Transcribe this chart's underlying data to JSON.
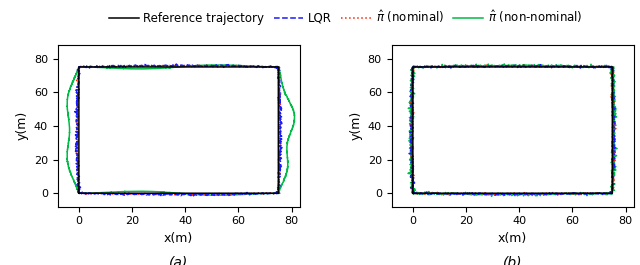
{
  "xlim": [
    -8,
    83
  ],
  "ylim": [
    -8,
    88
  ],
  "xticks": [
    0,
    20,
    40,
    60,
    80
  ],
  "yticks": [
    0,
    20,
    40,
    60,
    80
  ],
  "xlabel": "x(m)",
  "ylabel": "y(m)",
  "rect_corners": [
    [
      0,
      0
    ],
    [
      75,
      0
    ],
    [
      75,
      75
    ],
    [
      0,
      75
    ],
    [
      0,
      0
    ]
  ],
  "ref_color": "#000000",
  "lqr_color": "#1a1aff",
  "pi_nom_color": "#ff2200",
  "pi_nonom_color": "#00bb44",
  "subplot_labels": [
    "(a)",
    "(b)"
  ],
  "legend_fontsize": 8.5,
  "tick_fontsize": 8,
  "label_fontsize": 9
}
